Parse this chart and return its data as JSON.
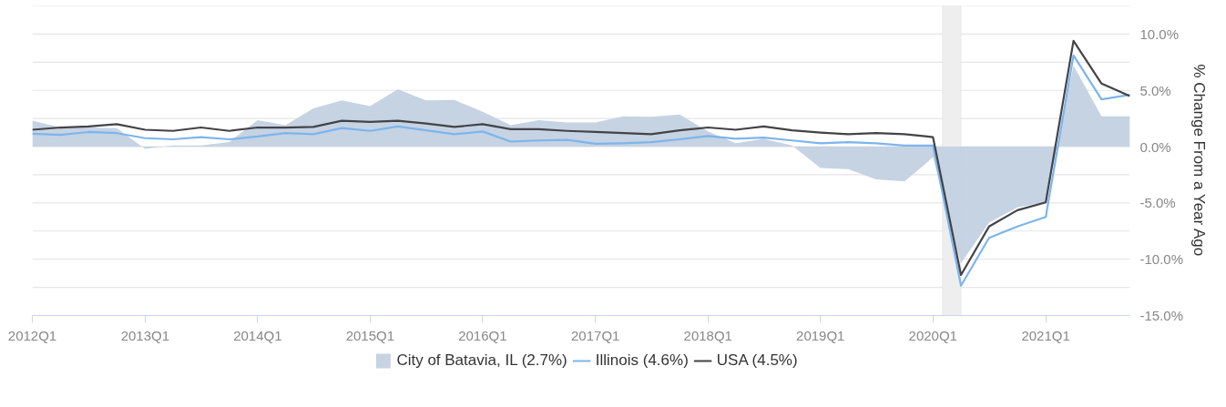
{
  "chart_data": {
    "type": "line",
    "ylabel": "% Change From a Year Ago",
    "x": [
      "2012-01",
      "2012-04",
      "2012-07",
      "2012-10",
      "2013-01",
      "2013-04",
      "2013-07",
      "2013-10",
      "2014-01",
      "2014-04",
      "2014-07",
      "2014-10",
      "2015-01",
      "2015-04",
      "2015-07",
      "2015-10",
      "2016-01",
      "2016-04",
      "2016-07",
      "2016-10",
      "2017-01",
      "2017-04",
      "2017-07",
      "2017-10",
      "2018-01",
      "2018-04",
      "2018-07",
      "2018-10",
      "2019-01",
      "2019-04",
      "2019-07",
      "2019-10",
      "2020-01",
      "2020-04",
      "2020-07",
      "2020-10",
      "2021-01",
      "2021-04",
      "2021-07",
      "2021-10"
    ],
    "series": [
      {
        "name": "City of Batavia, IL (2.7%)",
        "type": "area",
        "color": "#c3d1e2",
        "values": [
          2.3,
          1.7,
          1.7,
          1.65,
          -0.2,
          0.1,
          0.1,
          0.4,
          2.35,
          1.9,
          3.4,
          4.1,
          3.6,
          5.1,
          4.1,
          4.15,
          3.1,
          1.9,
          2.35,
          2.15,
          2.15,
          2.7,
          2.65,
          2.85,
          1.35,
          0.3,
          0.7,
          0.1,
          -1.9,
          -2.0,
          -2.9,
          -3.1,
          -0.95,
          -10.35,
          -6.75,
          -5.4,
          -4.95,
          7.2,
          2.7,
          2.7
        ]
      },
      {
        "name": "Illinois (4.6%)",
        "type": "line",
        "color": "#7cb5ec",
        "values": [
          1.15,
          1.05,
          1.3,
          1.2,
          0.75,
          0.65,
          0.85,
          0.65,
          0.9,
          1.2,
          1.1,
          1.65,
          1.4,
          1.8,
          1.45,
          1.1,
          1.35,
          0.45,
          0.55,
          0.6,
          0.25,
          0.3,
          0.4,
          0.65,
          0.95,
          0.7,
          0.8,
          0.55,
          0.3,
          0.4,
          0.3,
          0.1,
          0.1,
          -12.35,
          -8.1,
          -7.1,
          -6.25,
          8.1,
          4.2,
          4.6
        ]
      },
      {
        "name": "USA (4.5%)",
        "type": "line",
        "color": "#434348",
        "values": [
          1.5,
          1.7,
          1.8,
          2.0,
          1.5,
          1.4,
          1.7,
          1.4,
          1.7,
          1.7,
          1.75,
          2.3,
          2.2,
          2.3,
          2.05,
          1.75,
          2.0,
          1.55,
          1.55,
          1.4,
          1.3,
          1.2,
          1.1,
          1.45,
          1.7,
          1.5,
          1.8,
          1.45,
          1.25,
          1.1,
          1.2,
          1.1,
          0.85,
          -11.4,
          -7.1,
          -5.65,
          -4.95,
          9.4,
          5.6,
          4.5
        ]
      }
    ],
    "xlim": [
      "2012-01",
      "2021-10"
    ],
    "xticks": [
      {
        "value": "2012-01",
        "label": "2012Q1"
      },
      {
        "value": "2013-01",
        "label": "2013Q1"
      },
      {
        "value": "2014-01",
        "label": "2014Q1"
      },
      {
        "value": "2015-01",
        "label": "2015Q1"
      },
      {
        "value": "2016-01",
        "label": "2016Q1"
      },
      {
        "value": "2017-01",
        "label": "2017Q1"
      },
      {
        "value": "2018-01",
        "label": "2018Q1"
      },
      {
        "value": "2019-01",
        "label": "2019Q1"
      },
      {
        "value": "2020-01",
        "label": "2020Q1"
      },
      {
        "value": "2021-01",
        "label": "2021Q1"
      }
    ],
    "ylim": [
      -15,
      12.5
    ],
    "yticks": [
      {
        "value": -15,
        "label": "-15.0%"
      },
      {
        "value": -12.5,
        "label": null
      },
      {
        "value": -10,
        "label": "-10.0%"
      },
      {
        "value": -7.5,
        "label": null
      },
      {
        "value": -5,
        "label": "-5.0%"
      },
      {
        "value": -2.5,
        "label": null
      },
      {
        "value": 0,
        "label": "0.0%"
      },
      {
        "value": 2.5,
        "label": null
      },
      {
        "value": 5,
        "label": "5.0%"
      },
      {
        "value": 7.5,
        "label": null
      },
      {
        "value": 10,
        "label": "10.0%"
      },
      {
        "value": 12.5,
        "label": null
      }
    ],
    "bands": [
      {
        "axis": "x",
        "from": "2020-02",
        "to": "2020-04",
        "color": "#eeeeee"
      }
    ],
    "grid": "y",
    "legend": "bottom",
    "marker": "none",
    "line_style": "solid"
  }
}
